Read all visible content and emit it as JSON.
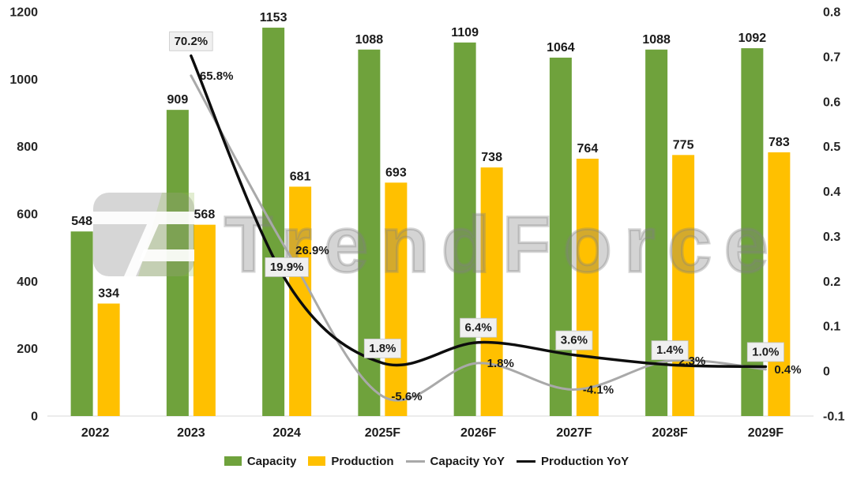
{
  "watermark": {
    "text": "TrendForce"
  },
  "chart_data": {
    "type": "combo-bar-line",
    "categories": [
      "2022",
      "2023",
      "2024",
      "2025F",
      "2026F",
      "2027F",
      "2028F",
      "2029F"
    ],
    "bar_series": [
      {
        "name": "Capacity",
        "color": "#6FA23C",
        "values": [
          548,
          909,
          1153,
          1088,
          1109,
          1064,
          1088,
          1092
        ],
        "value_labels": [
          "548",
          "909",
          "1153",
          "1088",
          "1109",
          "1064",
          "1088",
          "1092"
        ]
      },
      {
        "name": "Production",
        "color": "#FFC000",
        "values": [
          334,
          568,
          681,
          693,
          738,
          764,
          775,
          783
        ],
        "value_labels": [
          "334",
          "568",
          "681",
          "693",
          "738",
          "764",
          "775",
          "783"
        ]
      }
    ],
    "line_series": [
      {
        "name": "Capacity YoY",
        "color": "#A9A9A9",
        "width": 3,
        "label_style": "plain-right",
        "values": [
          null,
          0.658,
          0.269,
          -0.056,
          0.018,
          -0.041,
          0.023,
          0.004
        ],
        "point_labels": [
          "",
          "65.8%",
          "26.9%",
          "-5.6%",
          "1.8%",
          "-4.1%",
          "2.3%",
          "0.4%"
        ]
      },
      {
        "name": "Production YoY",
        "color": "#0D0D0D",
        "width": 3.5,
        "label_style": "boxed-above",
        "values": [
          null,
          0.702,
          0.199,
          0.018,
          0.064,
          0.036,
          0.014,
          0.01
        ],
        "point_labels": [
          "",
          "70.2%",
          "19.9%",
          "1.8%",
          "6.4%",
          "3.6%",
          "1.4%",
          "1.0%"
        ]
      }
    ],
    "left_axis": {
      "min": 0,
      "max": 1200,
      "tick_step": 200,
      "ticks": [
        0,
        200,
        400,
        600,
        800,
        1000,
        1200
      ]
    },
    "right_axis": {
      "min": -0.1,
      "max": 0.8,
      "tick_step": 0.1,
      "ticks": [
        -0.1,
        0,
        0.1,
        0.2,
        0.3,
        0.4,
        0.5,
        0.6,
        0.7,
        0.8
      ]
    },
    "legend": [
      {
        "label": "Capacity",
        "type": "bar"
      },
      {
        "label": "Production",
        "type": "bar"
      },
      {
        "label": "Capacity YoY",
        "type": "line"
      },
      {
        "label": "Production YoY",
        "type": "line"
      }
    ],
    "styles": {
      "label_box_bg": "#F0F0F0",
      "label_box_border": "#C6C6C6",
      "axis_line": "#D9D9D9",
      "logo_gray": "rgba(128,128,128,0.32)",
      "logo_green": "rgba(150,190,90,0.28)",
      "logo_white": "rgba(255,255,255,0.92)"
    }
  }
}
